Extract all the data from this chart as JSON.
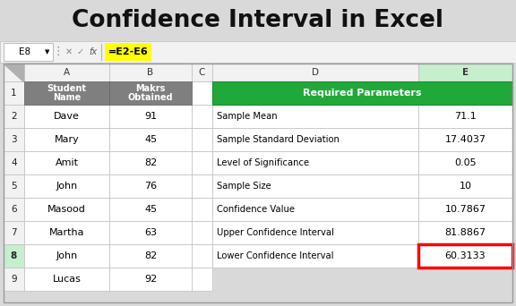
{
  "title": "Confidence Interval in Excel",
  "formula_bar_cell": "E8",
  "formula_bar_formula": "=E2-E6",
  "left_table": {
    "rows": [
      [
        "Student\nName",
        "Makrs\nObtained"
      ],
      [
        "Dave",
        "91"
      ],
      [
        "Mary",
        "45"
      ],
      [
        "Amit",
        "82"
      ],
      [
        "John",
        "76"
      ],
      [
        "Masood",
        "45"
      ],
      [
        "Martha",
        "63"
      ],
      [
        "John",
        "82"
      ],
      [
        "Lucas",
        "92"
      ]
    ]
  },
  "right_table": {
    "header": "Required Parameters",
    "rows": [
      [
        "Sample Mean",
        "71.1"
      ],
      [
        "Sample Standard Deviation",
        "17.4037"
      ],
      [
        "Level of Significance",
        "0.05"
      ],
      [
        "Sample Size",
        "10"
      ],
      [
        "Confidence Value",
        "10.7867"
      ],
      [
        "Upper Confidence Interval",
        "81.8867"
      ],
      [
        "Lower Confidence Interval",
        "60.3133"
      ]
    ]
  },
  "colors": {
    "header_gray": "#7f7f7f",
    "header_green": "#21a83a",
    "page_bg": "#d9d9d9",
    "formula_highlight": "#ffff00",
    "selected_cell_border": "#ff0000",
    "col_header_bg": "#f2f2f2",
    "row_number_bg": "#f2f2f2",
    "cell_bg": "#ffffff",
    "cell_border": "#bfbfbf",
    "selected_row_col_bg": "#c6efce",
    "fb_bg": "#f2f2f2",
    "fb_border": "#bfbfbf"
  }
}
